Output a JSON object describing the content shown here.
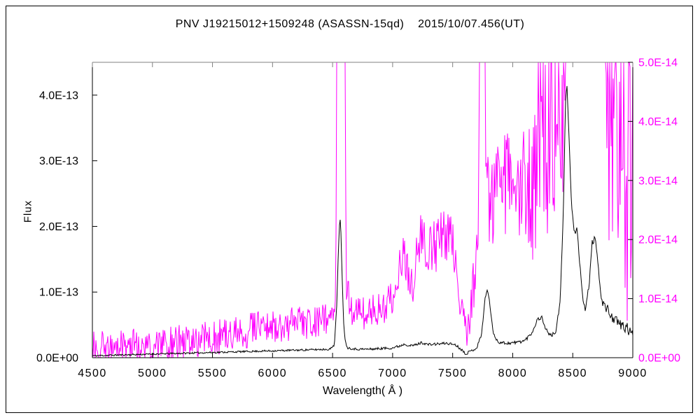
{
  "colors": {
    "magenta": "#ff00ff",
    "black": "#000000",
    "frame_top": "#808080"
  },
  "chart_data": {
    "type": "line",
    "title": "PNV J19215012+1509248 (ASASSN-15qd)    2015/10/07.456(UT)",
    "xlabel": "Wavelength( Å )",
    "ylabel": "Flux",
    "grid": false,
    "legend": "none",
    "seed": 11,
    "x_axis": {
      "min": 4500,
      "max": 9000,
      "ticks": [
        {
          "value": 4500,
          "label": "4500"
        },
        {
          "value": 5000,
          "label": "5000"
        },
        {
          "value": 5500,
          "label": "5500"
        },
        {
          "value": 6000,
          "label": "6000"
        },
        {
          "value": 6500,
          "label": "6500"
        },
        {
          "value": 7000,
          "label": "7000"
        },
        {
          "value": 7500,
          "label": "7500"
        },
        {
          "value": 8000,
          "label": "8000"
        },
        {
          "value": 8500,
          "label": "8500"
        },
        {
          "value": 9000,
          "label": "9000"
        }
      ]
    },
    "left_axis": {
      "min": 0,
      "max": 4.5e-13,
      "label_color": "#000000",
      "ticks": [
        {
          "value": 0,
          "label": "0.0E+00"
        },
        {
          "value": 1e-13,
          "label": "1.0E-13"
        },
        {
          "value": 2e-13,
          "label": "2.0E-13"
        },
        {
          "value": 3e-13,
          "label": "3.0E-13"
        },
        {
          "value": 4e-13,
          "label": "4.0E-13"
        }
      ]
    },
    "right_axis": {
      "min": 0,
      "max": 5e-14,
      "label_color": "#ff00ff",
      "ticks": [
        {
          "value": 0,
          "label": "0.0E+00"
        },
        {
          "value": 1e-14,
          "label": "1.0E-14"
        },
        {
          "value": 2e-14,
          "label": "2.0E-14"
        },
        {
          "value": 3e-14,
          "label": "3.0E-14"
        },
        {
          "value": 4e-14,
          "label": "4.0E-14"
        },
        {
          "value": 5e-14,
          "label": "5.0E-14"
        }
      ]
    },
    "series": [
      {
        "name": "object-spectrum-black",
        "axis": "left",
        "color": "#000000",
        "anchors": [
          [
            4500,
            3e-15
          ],
          [
            4700,
            4e-15
          ],
          [
            4900,
            5e-15
          ],
          [
            5100,
            6e-15
          ],
          [
            5300,
            7e-15
          ],
          [
            5500,
            8e-15
          ],
          [
            5700,
            9e-15
          ],
          [
            5900,
            1e-14
          ],
          [
            6100,
            1.1e-14
          ],
          [
            6300,
            1.2e-14
          ],
          [
            6480,
            1.3e-14
          ],
          [
            6515,
            2e-14
          ],
          [
            6535,
            8e-14
          ],
          [
            6548,
            1.6e-13
          ],
          [
            6558,
            2.05e-13
          ],
          [
            6563,
            2.13e-13
          ],
          [
            6570,
            1.9e-13
          ],
          [
            6580,
            1.2e-13
          ],
          [
            6592,
            5.5e-14
          ],
          [
            6605,
            2.5e-14
          ],
          [
            6625,
            1.5e-14
          ],
          [
            6700,
            1.3e-14
          ],
          [
            6800,
            1.3e-14
          ],
          [
            6900,
            1.4e-14
          ],
          [
            7000,
            1.5e-14
          ],
          [
            7060,
            1.8e-14
          ],
          [
            7100,
            2.1e-14
          ],
          [
            7150,
            1.8e-14
          ],
          [
            7200,
            2e-14
          ],
          [
            7240,
            2.3e-14
          ],
          [
            7300,
            2e-14
          ],
          [
            7380,
            2.1e-14
          ],
          [
            7450,
            2.2e-14
          ],
          [
            7520,
            2e-14
          ],
          [
            7570,
            1.3e-14
          ],
          [
            7610,
            6e-15
          ],
          [
            7650,
            1e-14
          ],
          [
            7700,
            1.5e-14
          ],
          [
            7740,
            3.5e-14
          ],
          [
            7770,
            9e-14
          ],
          [
            7790,
            1.05e-13
          ],
          [
            7812,
            7.8e-14
          ],
          [
            7840,
            3.5e-14
          ],
          [
            7880,
            2.4e-14
          ],
          [
            7950,
            2.2e-14
          ],
          [
            8020,
            2.3e-14
          ],
          [
            8100,
            2.6e-14
          ],
          [
            8160,
            3.8e-14
          ],
          [
            8205,
            5.8e-14
          ],
          [
            8240,
            6.2e-14
          ],
          [
            8280,
            4.2e-14
          ],
          [
            8320,
            3.3e-14
          ],
          [
            8360,
            4e-14
          ],
          [
            8395,
            8.5e-14
          ],
          [
            8420,
            2.1e-13
          ],
          [
            8440,
            3.9e-13
          ],
          [
            8451,
            4.22e-13
          ],
          [
            8462,
            3.7e-13
          ],
          [
            8490,
            2.3e-13
          ],
          [
            8515,
            1.9e-13
          ],
          [
            8535,
            1.95e-13
          ],
          [
            8555,
            1.5e-13
          ],
          [
            8580,
            9.5e-14
          ],
          [
            8605,
            7.2e-14
          ],
          [
            8635,
            1.1e-13
          ],
          [
            8662,
            1.75e-13
          ],
          [
            8690,
            1.82e-13
          ],
          [
            8715,
            1.3e-13
          ],
          [
            8745,
            8.5e-14
          ],
          [
            8780,
            7.5e-14
          ],
          [
            8820,
            6.5e-14
          ],
          [
            8860,
            5.5e-14
          ],
          [
            8900,
            5e-14
          ],
          [
            8950,
            4.5e-14
          ],
          [
            9000,
            3.3e-14
          ]
        ],
        "noise_envelope": [
          [
            4500,
            1.2e-15
          ],
          [
            6400,
            1.5e-15
          ],
          [
            7000,
            2e-15
          ],
          [
            7600,
            2e-15
          ],
          [
            8300,
            3e-15
          ],
          [
            8700,
            5e-15
          ],
          [
            8780,
            8e-15
          ],
          [
            9000,
            9e-15
          ]
        ]
      },
      {
        "name": "comparison-spectrum-magenta",
        "axis": "right",
        "color": "#ff00ff",
        "anchors": [
          [
            4500,
            1.5e-15
          ],
          [
            4700,
            1.7e-15
          ],
          [
            4900,
            2e-15
          ],
          [
            5100,
            2.2e-15
          ],
          [
            5300,
            2.8e-15
          ],
          [
            5500,
            3.3e-15
          ],
          [
            5700,
            4.2e-15
          ],
          [
            5900,
            5e-15
          ],
          [
            6100,
            5.5e-15
          ],
          [
            6300,
            6e-15
          ],
          [
            6450,
            6.8e-15
          ],
          [
            6510,
            8e-15
          ],
          [
            6527,
            1.2e-14
          ],
          [
            6538,
            8e-14
          ],
          [
            6600,
            8e-14
          ],
          [
            6612,
            1.3e-14
          ],
          [
            6650,
            8e-15
          ],
          [
            6750,
            7.5e-15
          ],
          [
            6850,
            8e-15
          ],
          [
            6950,
            9e-15
          ],
          [
            7010,
            1.05e-14
          ],
          [
            7060,
            1.55e-14
          ],
          [
            7100,
            1.75e-14
          ],
          [
            7140,
            1.35e-14
          ],
          [
            7170,
            1.2e-14
          ],
          [
            7210,
            1.9e-14
          ],
          [
            7240,
            2.1e-14
          ],
          [
            7270,
            1.8e-14
          ],
          [
            7320,
            1.85e-14
          ],
          [
            7380,
            1.95e-14
          ],
          [
            7430,
            2e-14
          ],
          [
            7480,
            2.25e-14
          ],
          [
            7520,
            1.8e-14
          ],
          [
            7560,
            1.1e-14
          ],
          [
            7600,
            5e-15
          ],
          [
            7630,
            4.5e-15
          ],
          [
            7660,
            8e-15
          ],
          [
            7690,
            1.6e-14
          ],
          [
            7715,
            2.6e-14
          ],
          [
            7735,
            8e-14
          ],
          [
            7763,
            8e-14
          ],
          [
            7778,
            3.1e-14
          ],
          [
            7820,
            2.7e-14
          ],
          [
            7880,
            2.8e-14
          ],
          [
            7950,
            2.9e-14
          ],
          [
            8020,
            2.75e-14
          ],
          [
            8080,
            2.9e-14
          ],
          [
            8140,
            3.1e-14
          ],
          [
            8180,
            3.4e-14
          ],
          [
            8230,
            3.7e-14
          ],
          [
            8290,
            3.9e-14
          ],
          [
            8350,
            4.1e-14
          ],
          [
            8420,
            4.6e-14
          ],
          [
            8450,
            7.5e-14
          ],
          [
            8730,
            7.5e-14
          ],
          [
            8752,
            5.8e-14
          ],
          [
            8770,
            4.9e-14
          ],
          [
            8800,
            4.3e-14
          ],
          [
            8850,
            3.9e-14
          ],
          [
            8900,
            3.5e-14
          ],
          [
            8950,
            3.2e-14
          ],
          [
            9000,
            3e-14
          ]
        ],
        "noise_envelope": [
          [
            4500,
            3e-15
          ],
          [
            5500,
            3e-15
          ],
          [
            6500,
            2.8e-15
          ],
          [
            7000,
            3.2e-15
          ],
          [
            7400,
            5e-15
          ],
          [
            7560,
            4.5e-15
          ],
          [
            7620,
            3e-15
          ],
          [
            7690,
            6e-15
          ],
          [
            7800,
            9e-15
          ],
          [
            8100,
            1e-14
          ],
          [
            8160,
            1.8e-14
          ],
          [
            8440,
            2.1e-14
          ],
          [
            8740,
            1.5e-14
          ],
          [
            8770,
            2.3e-14
          ],
          [
            8850,
            2.4e-14
          ],
          [
            9000,
            2.7e-14
          ]
        ]
      }
    ]
  }
}
